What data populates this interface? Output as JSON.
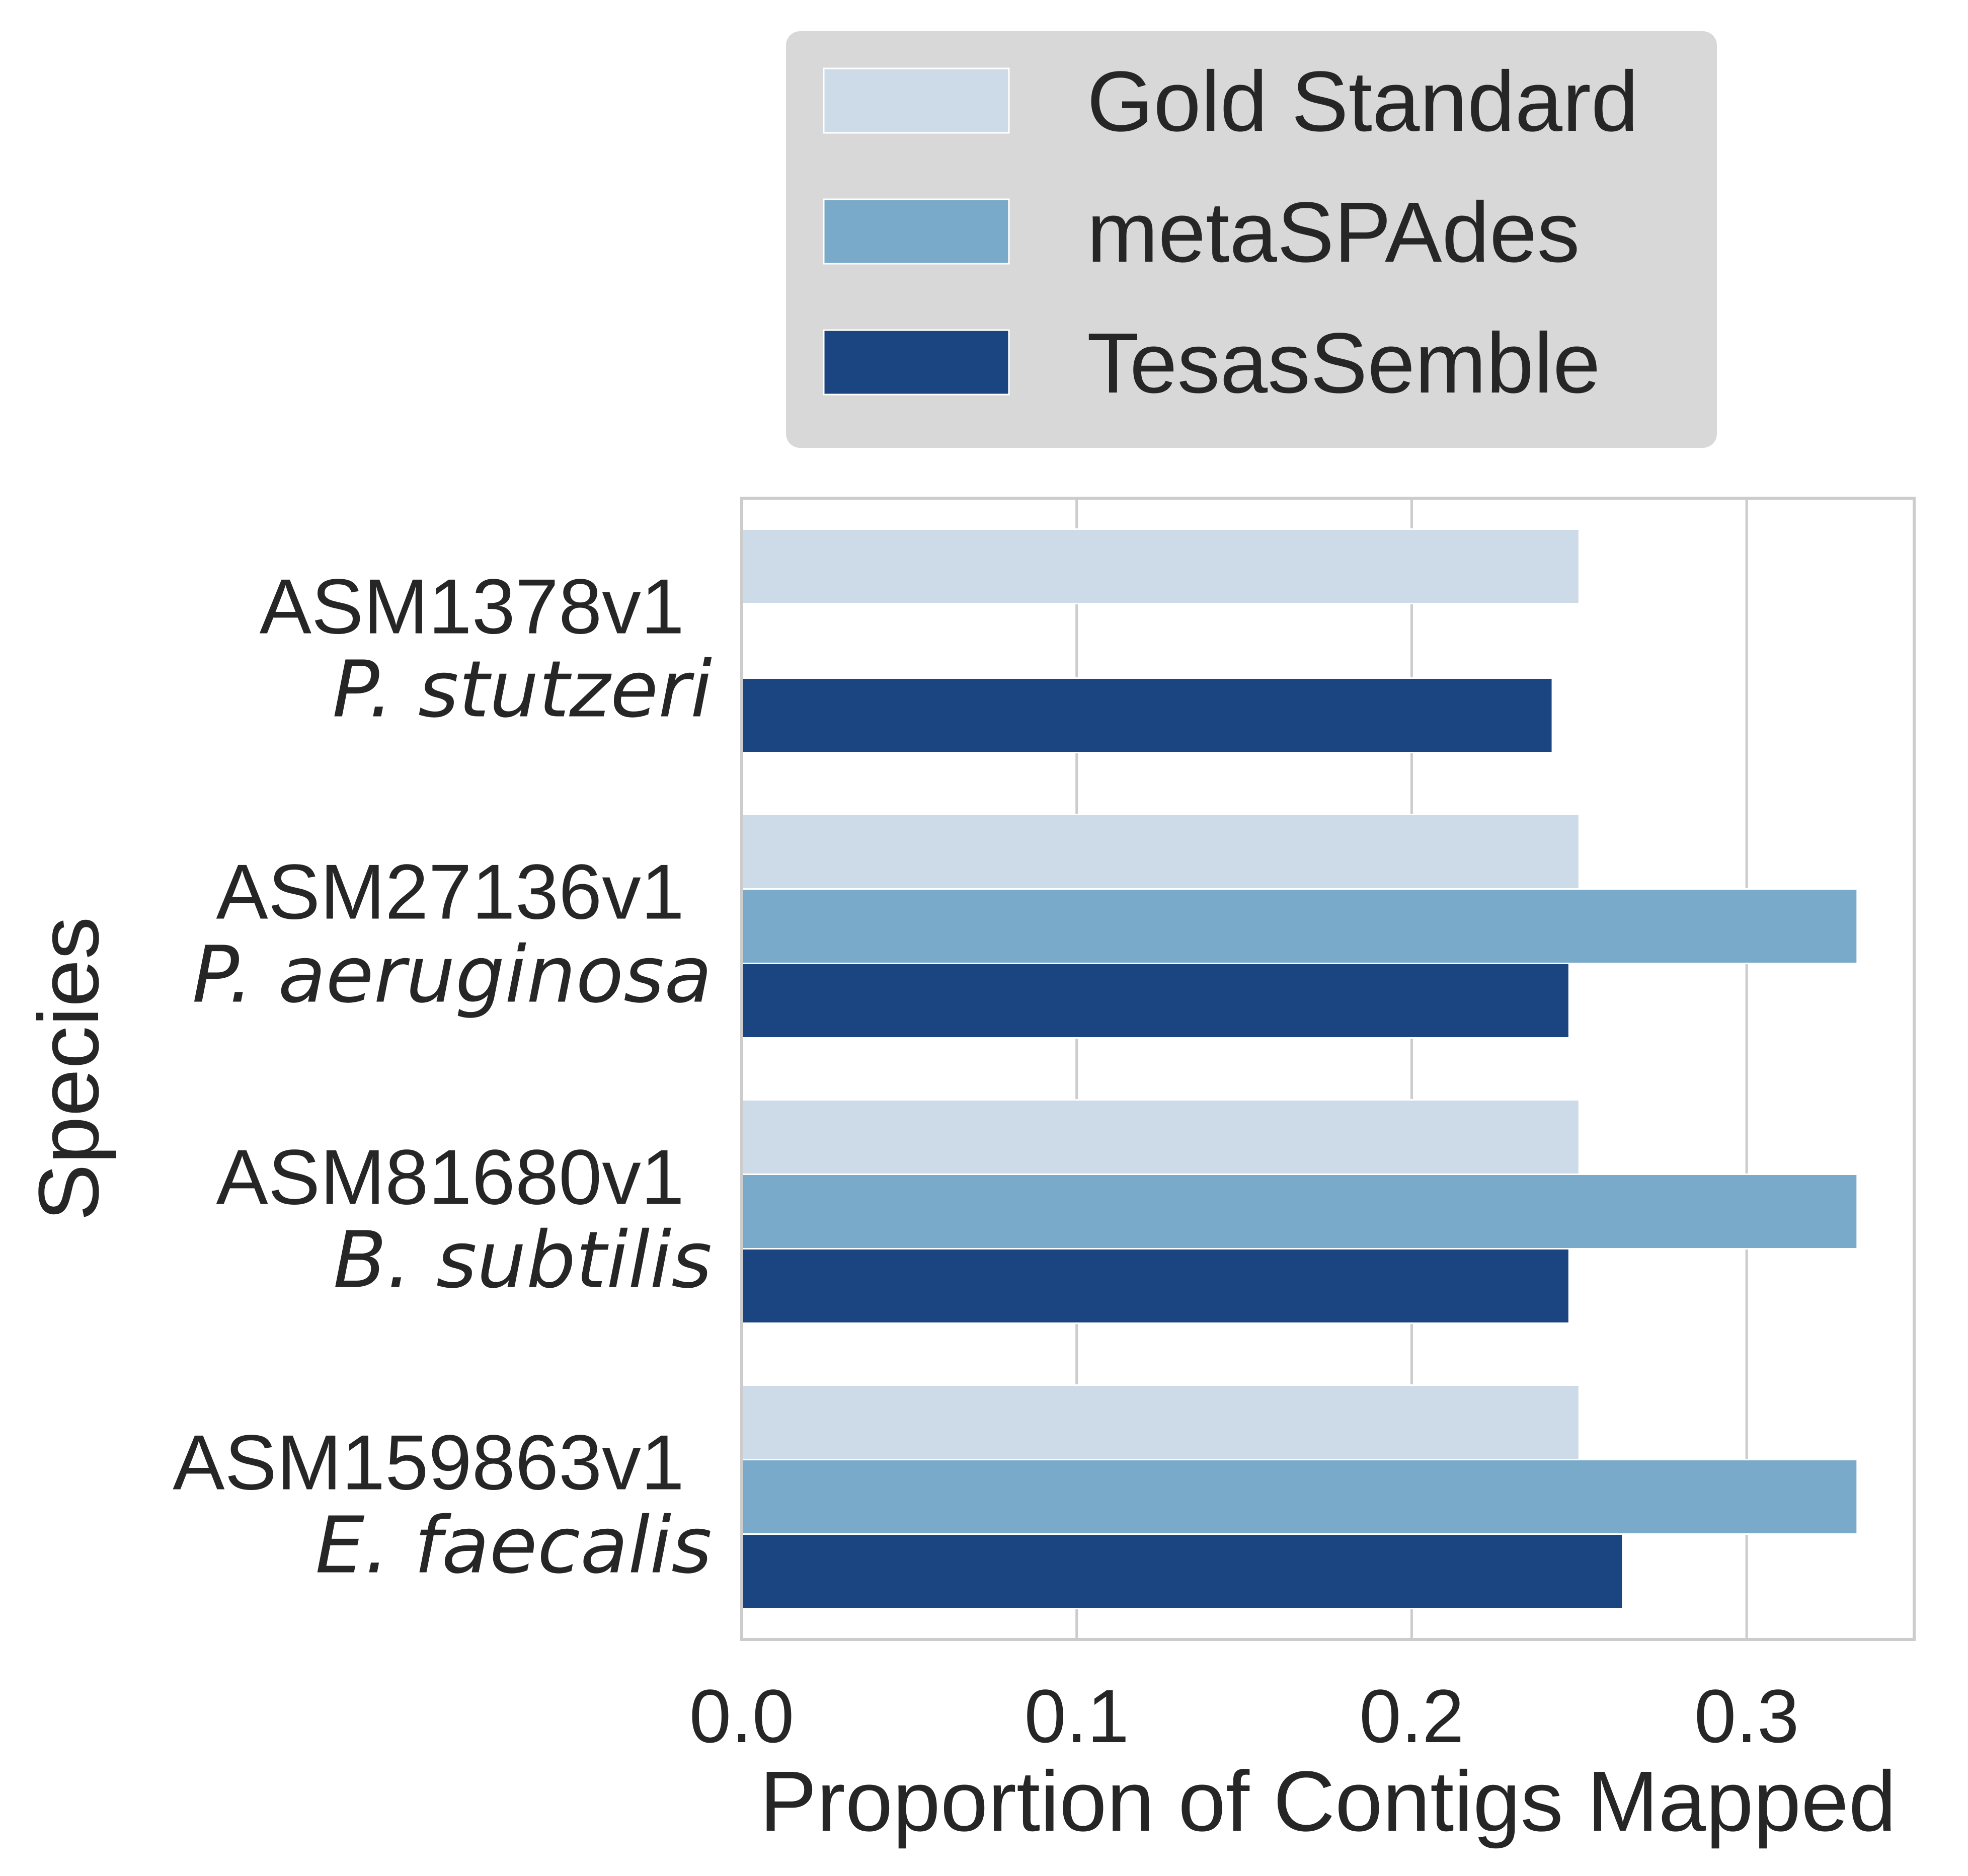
{
  "chart_data": {
    "type": "bar",
    "orientation": "horizontal",
    "categories": [
      {
        "line1": "ASM1378v1",
        "line2": "P. stutzeri"
      },
      {
        "line1": "ASM27136v1",
        "line2": "P. aeruginosa"
      },
      {
        "line1": "ASM81680v1",
        "line2": "B. subtilis"
      },
      {
        "line1": "ASM159863v1",
        "line2": "E. faecalis"
      }
    ],
    "series": [
      {
        "name": "Gold Standard",
        "color": "#cddbe8",
        "values": [
          0.25,
          0.25,
          0.25,
          0.25
        ]
      },
      {
        "name": "metaSPAdes",
        "color": "#7aaaca",
        "values": [
          0,
          0.333,
          0.333,
          0.333
        ]
      },
      {
        "name": "TesasSemble",
        "color": "#1b4581",
        "values": [
          0.242,
          0.247,
          0.247,
          0.263
        ]
      }
    ],
    "xlabel": "Proportion of Contigs Mapped",
    "ylabel": "Species",
    "xlim": [
      0,
      0.35
    ],
    "xticks": [
      0.0,
      0.1,
      0.2,
      0.3
    ],
    "xtick_labels": [
      "0.0",
      "0.1",
      "0.2",
      "0.3"
    ],
    "grid": "vertical",
    "legend_position": "top, above plot"
  }
}
